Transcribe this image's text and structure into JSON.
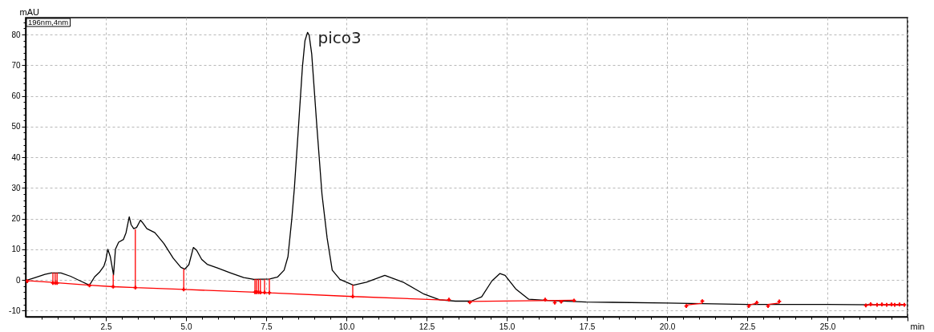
{
  "chart_data": {
    "type": "line",
    "ylabel": "mAU",
    "xlabel": "min",
    "annotations": [
      "196nm,4nm",
      {
        "text": "pico3",
        "x": 8.79,
        "y": 80.7
      }
    ],
    "xlim": [
      0,
      27.5
    ],
    "ylim": [
      -12,
      85.5
    ],
    "xticks": [
      {
        "value": 0.5,
        "label": null
      },
      {
        "value": 1,
        "label": null
      },
      {
        "value": 1.5,
        "label": null
      },
      {
        "value": 2,
        "label": null
      },
      {
        "value": 2.5,
        "label": "2.5"
      },
      {
        "value": 3,
        "label": null
      },
      {
        "value": 3.5,
        "label": null
      },
      {
        "value": 4,
        "label": null
      },
      {
        "value": 4.5,
        "label": null
      },
      {
        "value": 5,
        "label": "5.0"
      },
      {
        "value": 5.5,
        "label": null
      },
      {
        "value": 6,
        "label": null
      },
      {
        "value": 6.5,
        "label": null
      },
      {
        "value": 7,
        "label": null
      },
      {
        "value": 7.5,
        "label": "7.5"
      },
      {
        "value": 8,
        "label": null
      },
      {
        "value": 8.5,
        "label": null
      },
      {
        "value": 9,
        "label": null
      },
      {
        "value": 9.5,
        "label": null
      },
      {
        "value": 10,
        "label": "10.0"
      },
      {
        "value": 10.5,
        "label": null
      },
      {
        "value": 11,
        "label": null
      },
      {
        "value": 11.5,
        "label": null
      },
      {
        "value": 12,
        "label": null
      },
      {
        "value": 12.5,
        "label": "12.5"
      },
      {
        "value": 13,
        "label": null
      },
      {
        "value": 13.5,
        "label": null
      },
      {
        "value": 14,
        "label": null
      },
      {
        "value": 14.5,
        "label": null
      },
      {
        "value": 15,
        "label": "15.0"
      },
      {
        "value": 15.5,
        "label": null
      },
      {
        "value": 16,
        "label": null
      },
      {
        "value": 16.5,
        "label": null
      },
      {
        "value": 17,
        "label": null
      },
      {
        "value": 17.5,
        "label": "17.5"
      },
      {
        "value": 18,
        "label": null
      },
      {
        "value": 18.5,
        "label": null
      },
      {
        "value": 19,
        "label": null
      },
      {
        "value": 19.5,
        "label": null
      },
      {
        "value": 20,
        "label": "20.0"
      },
      {
        "value": 20.5,
        "label": null
      },
      {
        "value": 21,
        "label": null
      },
      {
        "value": 21.5,
        "label": null
      },
      {
        "value": 22,
        "label": null
      },
      {
        "value": 22.5,
        "label": "22.5"
      },
      {
        "value": 23,
        "label": null
      },
      {
        "value": 23.5,
        "label": null
      },
      {
        "value": 24,
        "label": null
      },
      {
        "value": 24.5,
        "label": null
      },
      {
        "value": 25,
        "label": "25.0"
      },
      {
        "value": 25.5,
        "label": null
      },
      {
        "value": 26,
        "label": null
      },
      {
        "value": 26.5,
        "label": null
      },
      {
        "value": 27,
        "label": null
      },
      {
        "value": 27.5,
        "label": null
      }
    ],
    "yticks": [
      -10,
      {
        "value": -8,
        "label": null
      },
      {
        "value": -6,
        "label": null
      },
      {
        "value": -4,
        "label": null
      },
      {
        "value": -2,
        "label": null
      },
      0,
      {
        "value": 2,
        "label": null
      },
      {
        "value": 4,
        "label": null
      },
      {
        "value": 6,
        "label": null
      },
      {
        "value": 8,
        "label": null
      },
      10,
      {
        "value": 12,
        "label": null
      },
      {
        "value": 14,
        "label": null
      },
      {
        "value": 16,
        "label": null
      },
      {
        "value": 18,
        "label": null
      },
      20,
      {
        "value": 22,
        "label": null
      },
      {
        "value": 24,
        "label": null
      },
      {
        "value": 26,
        "label": null
      },
      {
        "value": 28,
        "label": null
      },
      30,
      {
        "value": 32,
        "label": null
      },
      {
        "value": 34,
        "label": null
      },
      {
        "value": 36,
        "label": null
      },
      {
        "value": 38,
        "label": null
      },
      40,
      {
        "value": 42,
        "label": null
      },
      {
        "value": 44,
        "label": null
      },
      {
        "value": 46,
        "label": null
      },
      {
        "value": 48,
        "label": null
      },
      50,
      {
        "value": 52,
        "label": null
      },
      {
        "value": 54,
        "label": null
      },
      {
        "value": 56,
        "label": null
      },
      {
        "value": 58,
        "label": null
      },
      60,
      {
        "value": 62,
        "label": null
      },
      {
        "value": 64,
        "label": null
      },
      {
        "value": 66,
        "label": null
      },
      {
        "value": 68,
        "label": null
      },
      70,
      {
        "value": 72,
        "label": null
      },
      {
        "value": 74,
        "label": null
      },
      {
        "value": 76,
        "label": null
      },
      {
        "value": 78,
        "label": null
      },
      80,
      {
        "value": 82,
        "label": null
      },
      {
        "value": 84,
        "label": null
      }
    ],
    "grid": true,
    "series": [
      {
        "color": "#000000",
        "x": [
          0,
          0.3,
          0.6,
          0.8,
          1.1,
          1.4,
          1.7,
          1.99,
          2.15,
          2.3,
          2.44,
          2.5,
          2.56,
          2.64,
          2.74,
          2.8,
          2.9,
          3.05,
          3.13,
          3.23,
          3.29,
          3.37,
          3.46,
          3.58,
          3.66,
          3.78,
          4.03,
          4.31,
          4.6,
          4.84,
          4.96,
          5.09,
          5.23,
          5.33,
          5.49,
          5.66,
          5.98,
          6.39,
          6.8,
          7.12,
          7.61,
          7.86,
          8.06,
          8.18,
          8.3,
          8.38,
          8.51,
          8.63,
          8.71,
          8.79,
          8.84,
          8.92,
          9.08,
          9.24,
          9.4,
          9.56,
          9.8,
          10.22,
          10.63,
          11.2,
          11.77,
          12.42,
          12.91,
          13.4,
          13.89,
          14.22,
          14.54,
          14.79,
          14.95,
          15.28,
          15.69,
          16.26,
          17.48,
          18.3,
          20,
          22.5,
          25,
          27.4
        ],
        "values": [
          -0.2,
          0.8,
          1.8,
          2.3,
          2.3,
          1.2,
          -0.3,
          -1.7,
          1.0,
          2.5,
          4.5,
          6.5,
          10.0,
          7.6,
          1.6,
          10.0,
          12.3,
          13.2,
          15.4,
          20.6,
          18.0,
          16.7,
          17.1,
          19.5,
          18.5,
          16.7,
          15.4,
          11.9,
          7.1,
          4.1,
          3.5,
          5.0,
          10.6,
          9.7,
          6.7,
          5.1,
          3.9,
          2.3,
          0.8,
          0.2,
          0.3,
          1.0,
          3.2,
          7.6,
          20.0,
          30.0,
          50.2,
          69.4,
          78.0,
          80.7,
          79.8,
          73.7,
          50.2,
          28.0,
          13.7,
          3.2,
          0.2,
          -1.7,
          -0.7,
          1.5,
          -0.7,
          -4.6,
          -6.5,
          -6.9,
          -6.9,
          -5.5,
          -0.3,
          2.1,
          1.5,
          -2.9,
          -6.3,
          -6.7,
          -7.2,
          -7.3,
          -7.5,
          -8.0,
          -8.0,
          -8.2
        ]
      },
      {
        "color": "#ff0000",
        "x": [
          0,
          0.85,
          0.85,
          0.85,
          0.92,
          0.92,
          0.92,
          0.98,
          0.98,
          0.98,
          1.99,
          2.73,
          2.73,
          2.73,
          3.42,
          3.42,
          3.42,
          4.93,
          4.93,
          4.93,
          7.15,
          7.15,
          7.15,
          7.2,
          7.2,
          7.2,
          7.26,
          7.26,
          7.26,
          7.32,
          7.32,
          7.32,
          7.45,
          7.45,
          7.45,
          7.6,
          7.6,
          7.6,
          10.2,
          10.2,
          10.2,
          13.2,
          13.5,
          13.85,
          17.1,
          18,
          20.6,
          21.1,
          21.8,
          22.55,
          22.8,
          23,
          23.15,
          23.5,
          24,
          26.2,
          27.4
        ],
        "values": [
          -0.2,
          -0.8,
          2.3,
          -0.8,
          -0.9,
          2.3,
          -0.9,
          -0.9,
          2.3,
          -0.9,
          -1.7,
          -2.2,
          1.6,
          -2.2,
          -2.5,
          16.4,
          -2.5,
          -3.1,
          3.5,
          -3.1,
          -4.0,
          0.2,
          -4.0,
          -4.0,
          0.2,
          -4.0,
          -4.0,
          0.2,
          -4.0,
          -4.1,
          0.2,
          -4.1,
          -4.1,
          0.2,
          -4.1,
          -4.2,
          0.3,
          -4.2,
          -5.4,
          -1.7,
          -5.4,
          -6.6,
          null,
          -7.0,
          -6.6,
          null,
          -8.2,
          -7.6,
          null,
          -8.2,
          -7.6,
          null,
          -8.0,
          -7.5,
          null,
          -8.2,
          -8.0
        ]
      },
      {
        "type": "scatter",
        "marker": "cross",
        "color": "#ff0000",
        "x": [
          0.05,
          0.85,
          0.92,
          0.98,
          1.99,
          2.73,
          3.42,
          4.93,
          7.15,
          7.2,
          7.26,
          7.32,
          7.45,
          7.6,
          10.2,
          13.2,
          13.85,
          16.2,
          16.5,
          16.7,
          17.1,
          20.6,
          21.1,
          22.55,
          22.8,
          23.15,
          23.5,
          26.2,
          26.35,
          26.55,
          26.7,
          26.85,
          27,
          27.1,
          27.25,
          27.4
        ],
        "values": [
          -0.4,
          -1.0,
          -1.0,
          -1.0,
          -1.8,
          -2.2,
          -2.5,
          -3.1,
          -4.0,
          -4.0,
          -4.0,
          -4.1,
          -4.1,
          -4.2,
          -5.4,
          -6.4,
          -7.3,
          -6.4,
          -7.4,
          -7.1,
          -6.7,
          -8.5,
          -6.9,
          -8.5,
          -7.4,
          -8.5,
          -7.0,
          -8.3,
          -7.9,
          -8.1,
          -8.0,
          -8.1,
          -8.0,
          -8.1,
          -8.0,
          -8.1
        ]
      }
    ]
  }
}
